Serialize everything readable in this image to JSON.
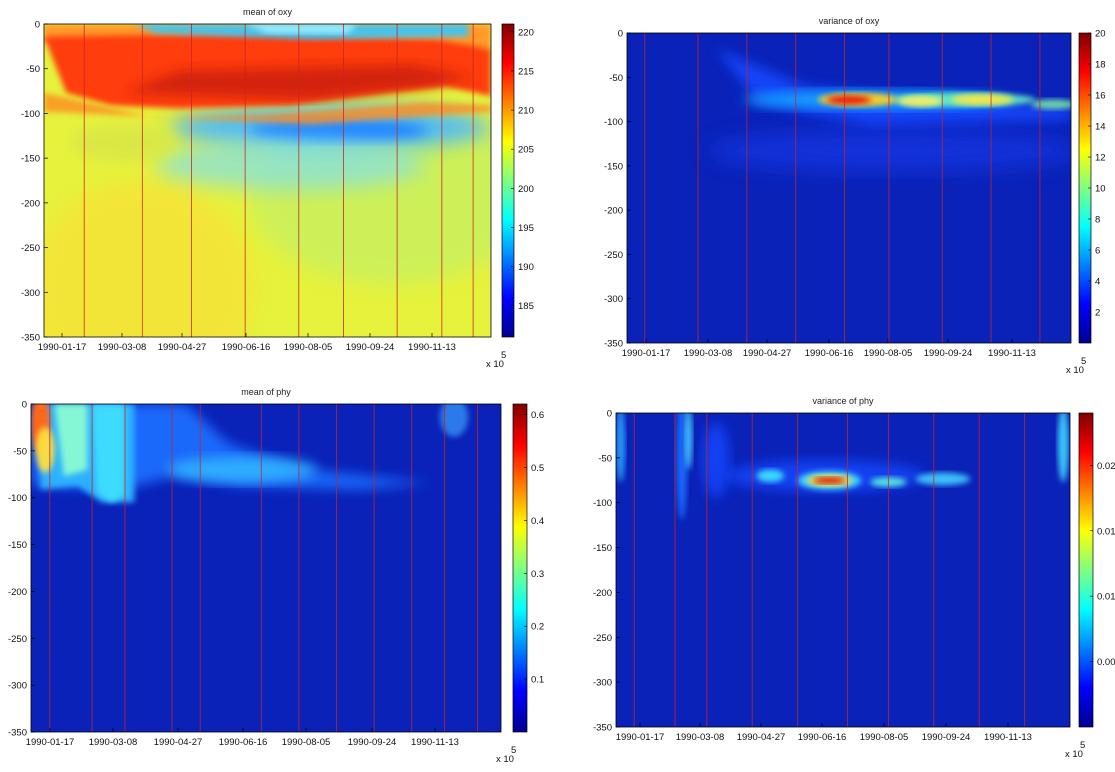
{
  "colors": {
    "bg": "#0a22b8",
    "vline": "#cc2222"
  },
  "chart_data": [
    {
      "type": "heatmap",
      "title": "mean of oxy",
      "field": "oxy_mean",
      "ylim": [
        -350,
        0
      ],
      "yticks": [
        "0",
        "-50",
        "-100",
        "-150",
        "-200",
        "-250",
        "-300",
        "-350"
      ],
      "xticks": [
        "1990-01-17",
        "1990-03-08",
        "1990-04-27",
        "1990-06-16",
        "1990-08-05",
        "1990-09-24",
        "1990-11-13"
      ],
      "x_exponent": "x 10",
      "x_exponent_power": "5",
      "colorbar": {
        "min": 181,
        "max": 221,
        "ticks": [
          "185",
          "190",
          "195",
          "200",
          "205",
          "210",
          "215",
          "220"
        ]
      },
      "vlines_frac": [
        0.09,
        0.22,
        0.33,
        0.45,
        0.57,
        0.67,
        0.79,
        0.89,
        0.96
      ]
    },
    {
      "type": "heatmap",
      "title": "variance of oxy",
      "field": "oxy_var",
      "ylim": [
        -350,
        0
      ],
      "yticks": [
        "0",
        "-50",
        "-100",
        "-150",
        "-200",
        "-250",
        "-300",
        "-350"
      ],
      "xticks": [
        "1990-01-17",
        "1990-03-08",
        "1990-04-27",
        "1990-06-16",
        "1990-08-05",
        "1990-09-24",
        "1990-11-13"
      ],
      "x_exponent": "x 10",
      "x_exponent_power": "5",
      "colorbar": {
        "min": 0,
        "max": 20,
        "ticks": [
          "2",
          "4",
          "6",
          "8",
          "10",
          "12",
          "14",
          "16",
          "18",
          "20"
        ]
      },
      "vlines_frac": [
        0.04,
        0.16,
        0.27,
        0.38,
        0.49,
        0.59,
        0.71,
        0.82,
        0.93
      ]
    },
    {
      "type": "heatmap",
      "title": "mean of phy",
      "field": "phy_mean",
      "ylim": [
        -350,
        0
      ],
      "yticks": [
        "0",
        "-50",
        "-100",
        "-150",
        "-200",
        "-250",
        "-300",
        "-350"
      ],
      "xticks": [
        "1990-01-17",
        "1990-03-08",
        "1990-04-27",
        "1990-06-16",
        "1990-08-05",
        "1990-09-24",
        "1990-11-13"
      ],
      "x_exponent": "x 10",
      "x_exponent_power": "5",
      "colorbar": {
        "min": 0,
        "max": 0.62,
        "ticks": [
          "0.1",
          "0.2",
          "0.3",
          "0.4",
          "0.5",
          "0.6"
        ]
      },
      "vlines_frac": [
        0.04,
        0.13,
        0.2,
        0.3,
        0.36,
        0.49,
        0.57,
        0.65,
        0.73,
        0.81,
        0.88,
        0.95
      ]
    },
    {
      "type": "heatmap",
      "title": "variance of phy",
      "field": "phy_var",
      "ylim": [
        -350,
        0
      ],
      "yticks": [
        "0",
        "-50",
        "-100",
        "-150",
        "-200",
        "-250",
        "-300",
        "-350"
      ],
      "xticks": [
        "1990-01-17",
        "1990-03-08",
        "1990-04-27",
        "1990-06-16",
        "1990-08-05",
        "1990-09-24",
        "1990-11-13"
      ],
      "x_exponent": "x 10",
      "x_exponent_power": "5",
      "colorbar": {
        "min": 0,
        "max": 0.024,
        "ticks": [
          "0.005",
          "0.01",
          "0.015",
          "0.02"
        ]
      },
      "vlines_frac": [
        0.04,
        0.13,
        0.2,
        0.3,
        0.4,
        0.51,
        0.6,
        0.7,
        0.8,
        0.9
      ]
    }
  ]
}
